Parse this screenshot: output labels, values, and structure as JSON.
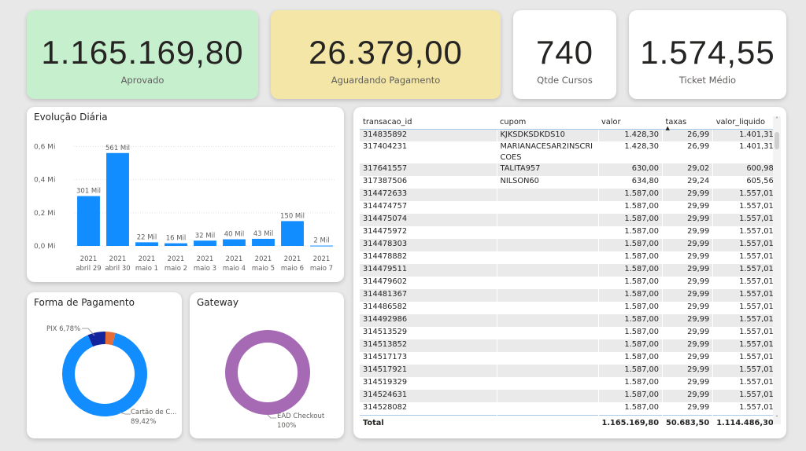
{
  "kpis": [
    {
      "value": "1.165.169,80",
      "label": "Aprovado",
      "bg": "#c6efce"
    },
    {
      "value": "26.379,00",
      "label": "Aguardando Pagamento",
      "bg": "#f3e6a6"
    },
    {
      "value": "740",
      "label": "Qtde Cursos",
      "bg": "#ffffff"
    },
    {
      "value": "1.574,55",
      "label": "Ticket Médio",
      "bg": "#ffffff"
    }
  ],
  "evolucao": {
    "title": "Evolução Diária",
    "chart_data": {
      "type": "bar",
      "categories": [
        [
          "2021",
          "abril 29"
        ],
        [
          "2021",
          "abril 30"
        ],
        [
          "2021",
          "maio 1"
        ],
        [
          "2021",
          "maio 2"
        ],
        [
          "2021",
          "maio 3"
        ],
        [
          "2021",
          "maio 4"
        ],
        [
          "2021",
          "maio 5"
        ],
        [
          "2021",
          "maio 6"
        ],
        [
          "2021",
          "maio 7"
        ]
      ],
      "values": [
        301,
        561,
        22,
        16,
        32,
        40,
        43,
        150,
        2
      ],
      "data_labels": [
        "301 Mil",
        "561 Mil",
        "22 Mil",
        "16 Mil",
        "32 Mil",
        "40 Mil",
        "43 Mil",
        "150 Mil",
        "2 Mil"
      ],
      "y_ticks": [
        "0,0 Mi",
        "0,2 Mi",
        "0,4 Mi",
        "0,6 Mi"
      ],
      "y_tick_values": [
        0,
        200,
        400,
        600
      ],
      "ylim": [
        0,
        650
      ],
      "unit": "Mil",
      "color": "#118dff",
      "grid": true
    }
  },
  "forma_pagamento": {
    "title": "Forma de Pagamento",
    "chart_data": {
      "type": "pie",
      "variant": "donut",
      "slices": [
        {
          "name": "Cartão de C...",
          "value": 89.42,
          "label": "89,42%",
          "color": "#118dff"
        },
        {
          "name": "PIX",
          "value": 6.78,
          "label": "6,78%",
          "color": "#12239e"
        },
        {
          "name": "",
          "value": 3.8,
          "label": "",
          "color": "#e66c37"
        }
      ],
      "callouts": [
        "PIX 6,78%",
        "Cartão de C...",
        "89,42%"
      ]
    }
  },
  "gateway": {
    "title": "Gateway",
    "chart_data": {
      "type": "pie",
      "variant": "donut",
      "slices": [
        {
          "name": "EAD Checkout",
          "value": 100,
          "label": "100%",
          "color": "#a66ab5"
        }
      ],
      "callouts": [
        "EAD Checkout",
        "100%"
      ]
    }
  },
  "table": {
    "columns": [
      "transacao_id",
      "cupom",
      "valor",
      "taxas",
      "valor_liquido"
    ],
    "sorted_column": "taxas",
    "rows": [
      [
        "314835892",
        "KJKSDKSDKDS10",
        "1.428,30",
        "26,99",
        "1.401,31"
      ],
      [
        "317404231",
        "MARIANACESAR2INSCRICOES",
        "1.428,30",
        "26,99",
        "1.401,31"
      ],
      [
        "317641557",
        "TALITA957",
        "630,00",
        "29,02",
        "600,98"
      ],
      [
        "317387506",
        "NILSON60",
        "634,80",
        "29,24",
        "605,56"
      ],
      [
        "314472633",
        "",
        "1.587,00",
        "29,99",
        "1.557,01"
      ],
      [
        "314474757",
        "",
        "1.587,00",
        "29,99",
        "1.557,01"
      ],
      [
        "314475074",
        "",
        "1.587,00",
        "29,99",
        "1.557,01"
      ],
      [
        "314475972",
        "",
        "1.587,00",
        "29,99",
        "1.557,01"
      ],
      [
        "314478303",
        "",
        "1.587,00",
        "29,99",
        "1.557,01"
      ],
      [
        "314478882",
        "",
        "1.587,00",
        "29,99",
        "1.557,01"
      ],
      [
        "314479511",
        "",
        "1.587,00",
        "29,99",
        "1.557,01"
      ],
      [
        "314479602",
        "",
        "1.587,00",
        "29,99",
        "1.557,01"
      ],
      [
        "314481367",
        "",
        "1.587,00",
        "29,99",
        "1.557,01"
      ],
      [
        "314486582",
        "",
        "1.587,00",
        "29,99",
        "1.557,01"
      ],
      [
        "314492986",
        "",
        "1.587,00",
        "29,99",
        "1.557,01"
      ],
      [
        "314513529",
        "",
        "1.587,00",
        "29,99",
        "1.557,01"
      ],
      [
        "314513852",
        "",
        "1.587,00",
        "29,99",
        "1.557,01"
      ],
      [
        "314517173",
        "",
        "1.587,00",
        "29,99",
        "1.557,01"
      ],
      [
        "314517921",
        "",
        "1.587,00",
        "29,99",
        "1.557,01"
      ],
      [
        "314519329",
        "",
        "1.587,00",
        "29,99",
        "1.557,01"
      ],
      [
        "314524631",
        "",
        "1.587,00",
        "29,99",
        "1.557,01"
      ],
      [
        "314528082",
        "",
        "1.587,00",
        "29,99",
        "1.557,01"
      ]
    ],
    "total": [
      "Total",
      "",
      "1.165.169,80",
      "50.683,50",
      "1.114.486,30"
    ]
  },
  "icons": {
    "sort": "sort-ascending-icon",
    "scroll_up": "chevron-up-icon",
    "scroll_down": "chevron-down-icon"
  }
}
